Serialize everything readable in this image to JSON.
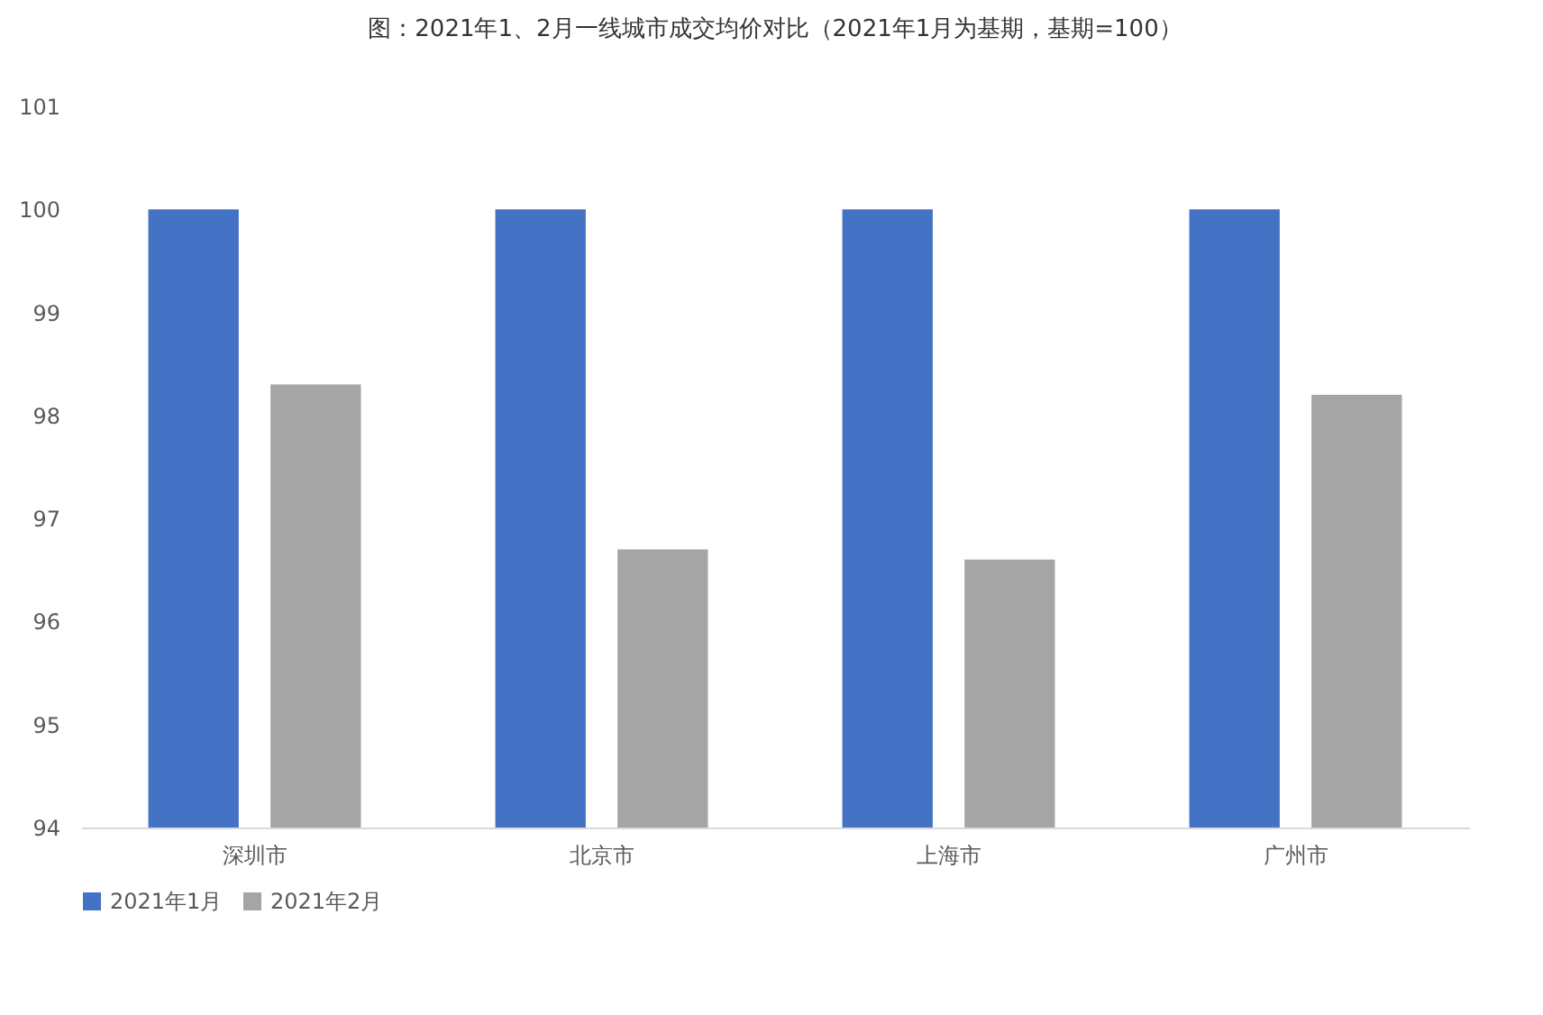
{
  "chart_data": {
    "type": "bar",
    "title": "图：2021年1、2月一线城市成交均价对比（2021年1月为基期，基期=100）",
    "categories": [
      "深圳市",
      "北京市",
      "上海市",
      "广州市"
    ],
    "series": [
      {
        "name": "2021年1月",
        "color": "#4472c4",
        "values": [
          100,
          100,
          100,
          100
        ]
      },
      {
        "name": "2021年2月",
        "color": "#a5a5a5",
        "values": [
          98.3,
          96.7,
          96.6,
          98.2
        ]
      }
    ],
    "ylim": [
      94,
      101
    ],
    "yticks": [
      94,
      95,
      96,
      97,
      98,
      99,
      100,
      101
    ],
    "grid": false,
    "legend": "bottom"
  }
}
